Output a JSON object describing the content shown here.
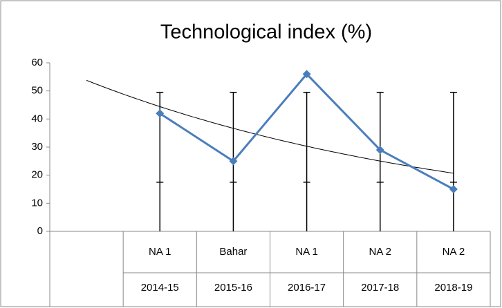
{
  "chart_data": {
    "type": "line",
    "title": "Technological index (%)",
    "categories": [
      null,
      "NA 1",
      "Bahar",
      "NA 1",
      "NA 2",
      "NA 2"
    ],
    "category_years": [
      null,
      "2014-15",
      "2015-16",
      "2016-17",
      "2017-18",
      "2018-19"
    ],
    "series": [
      {
        "color": "#4a7ebb",
        "values": [
          null,
          42,
          25,
          56,
          29,
          15
        ],
        "high": [
          null,
          49.5,
          49.5,
          49.5,
          49.5,
          49.5
        ],
        "low": [
          null,
          17.5,
          17.5,
          17.5,
          17.5,
          17.5
        ]
      }
    ],
    "trendline": "exponential",
    "drop_lines": true,
    "ylim": [
      0,
      60
    ],
    "yticks": [
      0,
      10,
      20,
      30,
      40,
      50,
      60
    ],
    "grid": false
  }
}
